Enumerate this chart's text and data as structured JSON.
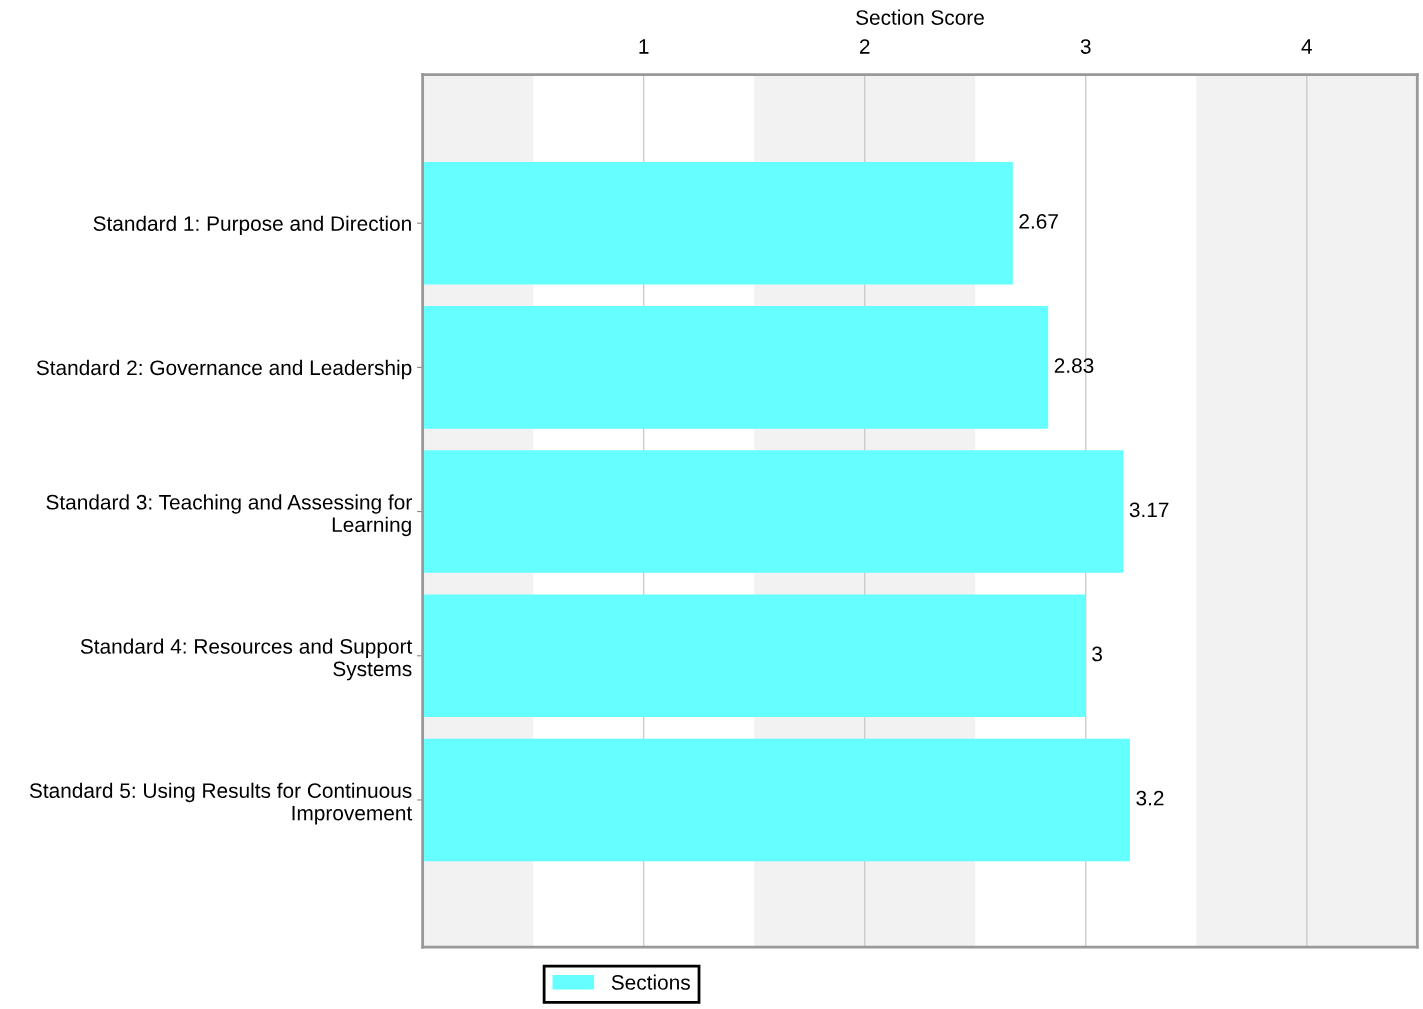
{
  "chart_data": {
    "type": "bar",
    "orientation": "horizontal",
    "xlabel": "Section Score",
    "categories": [
      "Standard 1: Purpose and Direction",
      "Standard 2: Governance and Leadership",
      "Standard 3: Teaching and Assessing for\nLearning",
      "Standard 4: Resources and Support\nSystems",
      "Standard 5: Using Results for Continuous\nImprovement"
    ],
    "series": [
      {
        "name": "Sections",
        "color": "#66ffff",
        "values": [
          2.67,
          2.83,
          3.17,
          3,
          3.2
        ]
      }
    ],
    "xlim": [
      0,
      4.5
    ],
    "xticks": [
      1,
      2,
      3,
      4
    ],
    "bands": [
      {
        "axis": "x",
        "from": 0,
        "to": 0.5,
        "color": "#f2f2f2"
      },
      {
        "axis": "x",
        "from": 1.5,
        "to": 2.5,
        "color": "#f2f2f2"
      },
      {
        "axis": "x",
        "from": 3.5,
        "to": 4.5,
        "color": "#f2f2f2"
      }
    ],
    "grid": "x",
    "legend": "bottom",
    "data_labels": true
  }
}
